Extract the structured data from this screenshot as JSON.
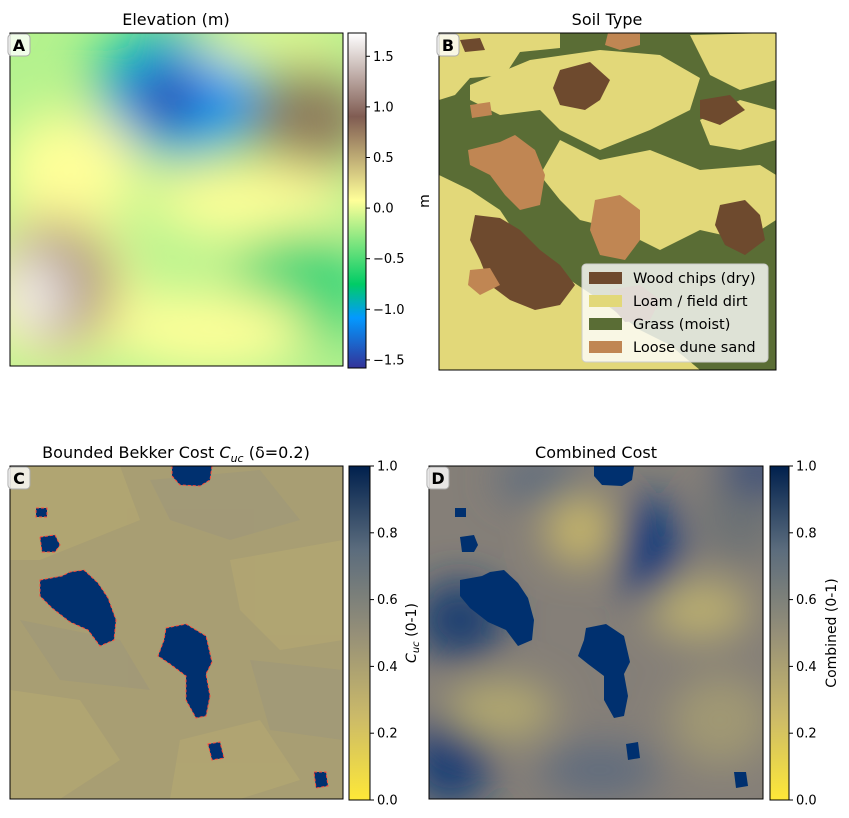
{
  "chart_data": [
    {
      "type": "heatmap",
      "panel": "A",
      "title": "Elevation (m)",
      "colormap": "terrain",
      "colorbar": {
        "ticks": [
          -1.5,
          -1.0,
          -0.5,
          0.0,
          0.5,
          1.0,
          1.5
        ],
        "tick_labels": [
          "−1.5",
          "−1.0",
          "−0.5",
          "0.0",
          "0.5",
          "1.0",
          "1.5"
        ],
        "range": [
          -1.58,
          1.73
        ],
        "label": "m"
      },
      "features": [
        {
          "kind": "low",
          "value": -1.5,
          "where": "upper-center"
        },
        {
          "kind": "high",
          "value": 1.7,
          "where": "lower-left"
        },
        {
          "kind": "high",
          "value": 0.9,
          "where": "upper-right"
        }
      ],
      "axes_ticks": "none"
    },
    {
      "type": "heatmap",
      "panel": "B",
      "title": "Soil Type",
      "legend": {
        "position": "lower-right",
        "entries": [
          {
            "label": "Wood chips (dry)",
            "color": "#6e4a2e"
          },
          {
            "label": "Loam / field dirt",
            "color": "#e2d879"
          },
          {
            "label": "Grass (moist)",
            "color": "#5a6d35"
          },
          {
            "label": "Loose dune sand",
            "color": "#c08653"
          }
        ]
      },
      "axes_ticks": "none"
    },
    {
      "type": "heatmap",
      "panel": "C",
      "title_prefix": "Bounded Bekker Cost ",
      "title_symbol": "C",
      "title_sub": "uc",
      "title_suffix": " (δ=0.2)",
      "colormap": "cividis_r",
      "colorbar": {
        "ticks": [
          0.0,
          0.2,
          0.4,
          0.6,
          0.8,
          1.0
        ],
        "tick_labels": [
          "0.0",
          "0.2",
          "0.4",
          "0.6",
          "0.8",
          "1.0"
        ],
        "range": [
          0,
          1
        ],
        "label_symbol": "C",
        "label_sub": "uc",
        "label_suffix": " (0-1)"
      },
      "background_value": 0.45,
      "saturated_value": 1.0,
      "axes_ticks": "none"
    },
    {
      "type": "heatmap",
      "panel": "D",
      "title": "Combined Cost",
      "colormap": "cividis_r",
      "colorbar": {
        "ticks": [
          0.0,
          0.2,
          0.4,
          0.6,
          0.8,
          1.0
        ],
        "tick_labels": [
          "0.0",
          "0.2",
          "0.4",
          "0.6",
          "0.8",
          "1.0"
        ],
        "range": [
          0,
          1
        ],
        "label": "Combined (0-1)"
      },
      "axes_ticks": "none"
    }
  ]
}
